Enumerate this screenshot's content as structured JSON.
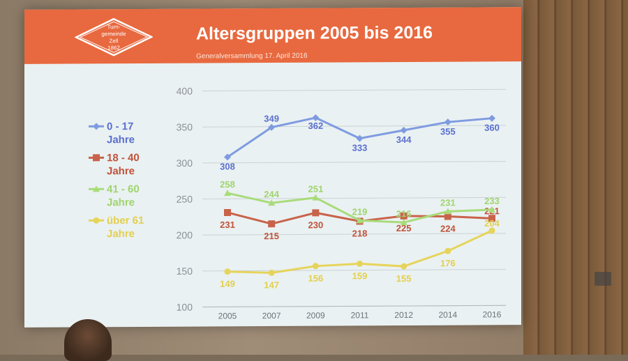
{
  "header": {
    "title": "Altersgruppen 2005 bis 2016",
    "subtitle": "Generalversammlung 17. April 2016",
    "logo_lines": [
      "Turn-",
      "gemeinde",
      "Zell",
      "1862"
    ]
  },
  "colors": {
    "header_bg": "#e8693f",
    "screen_bg": "#eaf1f2"
  },
  "chart_data": {
    "type": "line",
    "categories": [
      "2005",
      "2007",
      "2009",
      "2011",
      "2012",
      "2014",
      "2016"
    ],
    "ylim": [
      100,
      400
    ],
    "yticks": [
      100,
      150,
      200,
      250,
      300,
      350,
      400
    ],
    "grid": true,
    "legend_position": "left",
    "series": [
      {
        "name": "0 - 17 Jahre",
        "marker": "diamond",
        "color": "#7f9be0",
        "label_color": "#5a6fcf",
        "values": [
          308,
          349,
          362,
          333,
          344,
          355,
          360
        ]
      },
      {
        "name": "18 - 40 Jahre",
        "marker": "square",
        "color": "#c8634a",
        "label_color": "#c0523a",
        "values": [
          231,
          215,
          230,
          218,
          225,
          224,
          221
        ]
      },
      {
        "name": "41 - 60 Jahre",
        "marker": "triangle",
        "color": "#a8dc7a",
        "label_color": "#9fd46e",
        "values": [
          258,
          244,
          251,
          219,
          216,
          231,
          233
        ]
      },
      {
        "name": "über 61 Jahre",
        "marker": "circle",
        "color": "#e6d45a",
        "label_color": "#e2cf4f",
        "values": [
          149,
          147,
          156,
          159,
          155,
          176,
          204
        ]
      }
    ]
  }
}
